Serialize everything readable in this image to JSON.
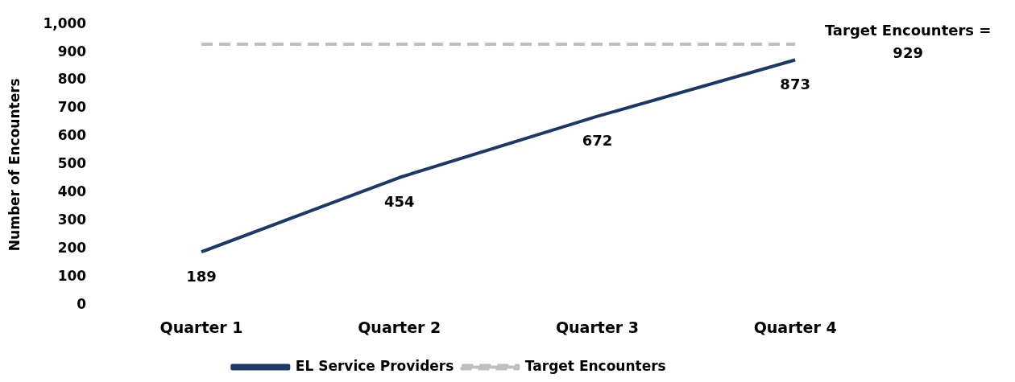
{
  "chart_data": {
    "type": "line",
    "ylabel": "Number of Encounters",
    "categories": [
      "Quarter 1",
      "Quarter 2",
      "Quarter 3",
      "Quarter 4"
    ],
    "series": [
      {
        "name": "EL Service Providers",
        "color": "#203864",
        "values": [
          189,
          454,
          672,
          873
        ],
        "value_labels": [
          "189",
          "454",
          "672",
          "873"
        ]
      },
      {
        "name": "Target Encounters",
        "color": "#bfbfbf",
        "line_style": "dashed",
        "values": [
          929,
          929,
          929,
          929
        ]
      }
    ],
    "ylim": [
      0,
      1000
    ],
    "yticks": [
      0,
      100,
      200,
      300,
      400,
      500,
      600,
      700,
      800,
      900,
      {
        "value": 1000,
        "label": "1,000"
      }
    ],
    "grid": false,
    "legend": "bottom",
    "marker": "none",
    "line_style": "solid",
    "annotations": [
      {
        "text": "Target Encounters = 929",
        "x": "Quarter 4",
        "y": 929
      }
    ]
  }
}
